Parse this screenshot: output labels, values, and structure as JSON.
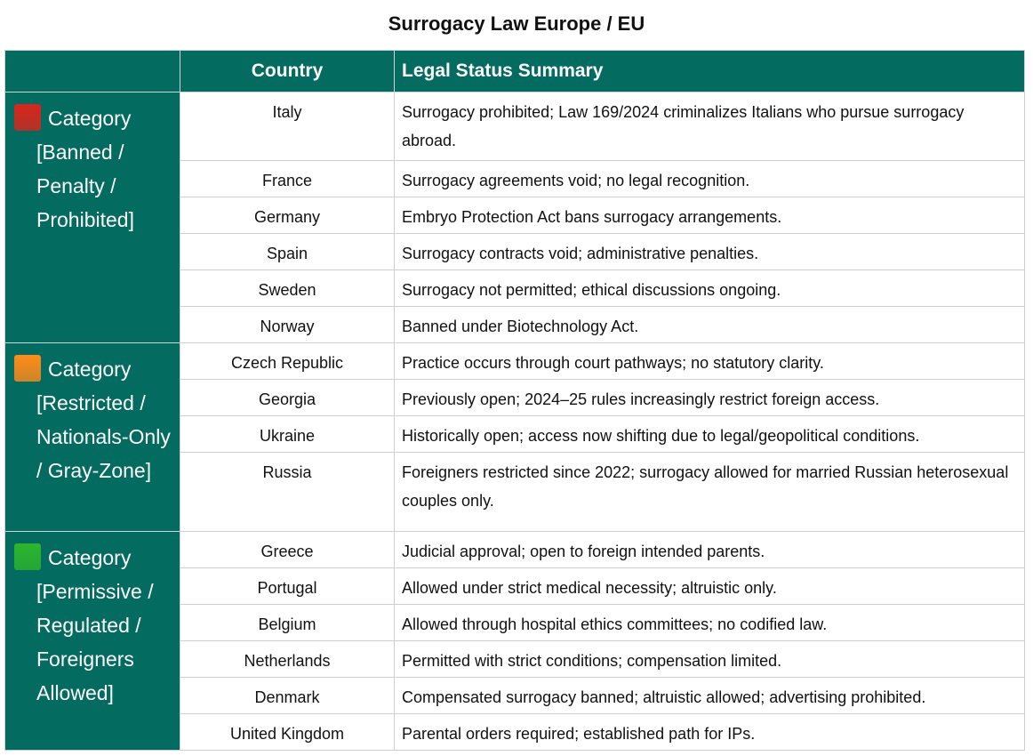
{
  "title": "Surrogacy Law Europe / EU",
  "headers": {
    "category": "",
    "country": "Country",
    "status": "Legal Status Summary"
  },
  "colors": {
    "header_bg": "#036b5f",
    "red": "#d8261c",
    "orange": "#ff8c1a",
    "green": "#2db52d"
  },
  "categories": [
    {
      "icon": "red-square",
      "label": "Category",
      "sub": "[Banned / Penalty / Prohibited]",
      "rows": [
        {
          "country": "Italy",
          "status": "Surrogacy prohibited; Law 169/2024 criminalizes Italians who pursue surrogacy abroad."
        },
        {
          "country": "France",
          "status": "Surrogacy agreements void; no legal recognition."
        },
        {
          "country": "Germany",
          "status": "Embryo Protection Act bans surrogacy arrangements."
        },
        {
          "country": "Spain",
          "status": "Surrogacy contracts void; administrative penalties."
        },
        {
          "country": "Sweden",
          "status": "Surrogacy not permitted; ethical discussions ongoing."
        },
        {
          "country": "Norway",
          "status": "Banned under Biotechnology Act."
        }
      ]
    },
    {
      "icon": "orange-square",
      "label": "Category",
      "sub": "[Restricted / Nationals-Only / Gray-Zone]",
      "rows": [
        {
          "country": "Czech Republic",
          "status": "Practice occurs through court pathways; no statutory clarity."
        },
        {
          "country": "Georgia",
          "status": "Previously open; 2024–25 rules increasingly restrict foreign access."
        },
        {
          "country": "Ukraine",
          "status": "Historically open; access now shifting due to legal/geopolitical conditions."
        },
        {
          "country": "Russia",
          "status": "Foreigners restricted since 2022; surrogacy allowed for married Russian heterosexual couples only."
        }
      ]
    },
    {
      "icon": "green-square",
      "label": "Category",
      "sub": "[Permissive / Regulated / Foreigners Allowed]",
      "rows": [
        {
          "country": "Greece",
          "status": "Judicial approval; open to foreign intended parents."
        },
        {
          "country": "Portugal",
          "status": "Allowed under strict medical necessity; altruistic only."
        },
        {
          "country": "Belgium",
          "status": "Allowed through hospital ethics committees; no codified law."
        },
        {
          "country": "Netherlands",
          "status": "Permitted with strict conditions; compensation limited."
        },
        {
          "country": "Denmark",
          "status": "Compensated surrogacy banned; altruistic allowed; advertising prohibited."
        },
        {
          "country": "United Kingdom",
          "status": "Parental orders required; established path for IPs."
        }
      ]
    }
  ]
}
